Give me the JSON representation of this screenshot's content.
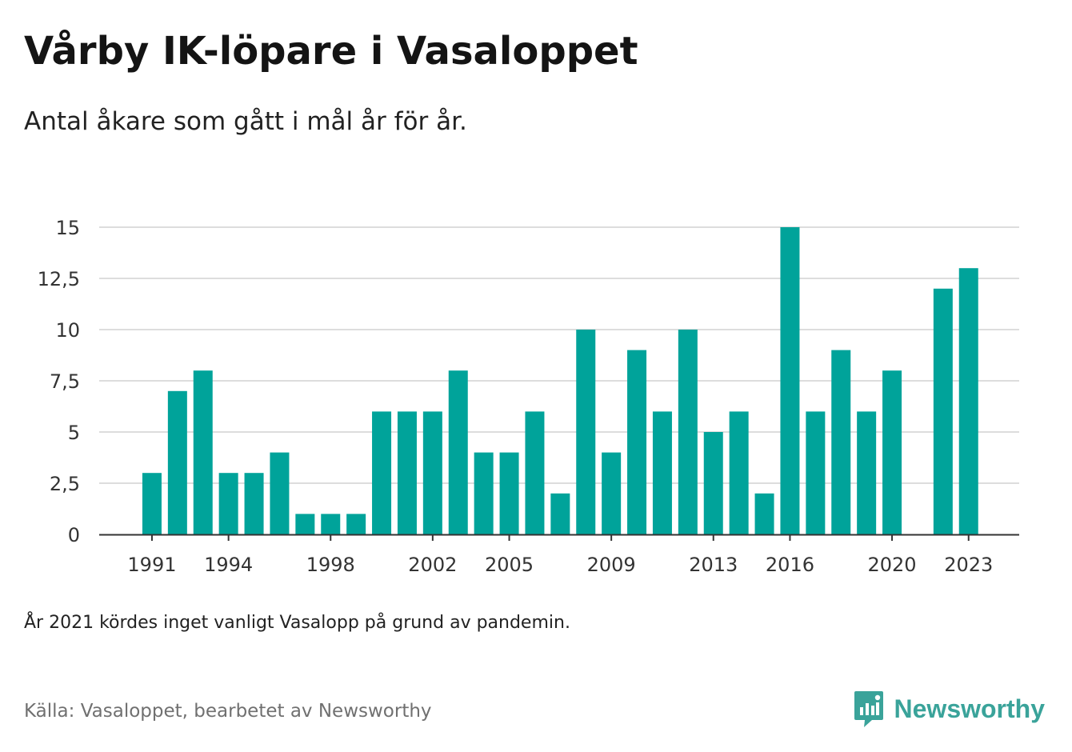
{
  "title": "Vårby IK-löpare i Vasaloppet",
  "subtitle": "Antal åkare som gått i mål år för år.",
  "note": "År 2021 kördes inget vanligt Vasalopp på grund av pandemin.",
  "source": "Källa: Vasaloppet, bearbetet av Newsworthy",
  "brand": {
    "name": "Newsworthy",
    "icon": "newsworthy-logo-icon"
  },
  "colors": {
    "bar": "#00a39a",
    "grid": "#dddddd",
    "axis": "#333333"
  },
  "chart_data": {
    "type": "bar",
    "categories": [
      1991,
      1992,
      1993,
      1994,
      1995,
      1996,
      1997,
      1998,
      1999,
      2000,
      2001,
      2002,
      2003,
      2004,
      2005,
      2006,
      2007,
      2008,
      2009,
      2010,
      2011,
      2012,
      2013,
      2014,
      2015,
      2016,
      2017,
      2018,
      2019,
      2020,
      2021,
      2022,
      2023
    ],
    "values": [
      3,
      7,
      8,
      3,
      3,
      4,
      1,
      1,
      1,
      6,
      6,
      6,
      8,
      4,
      4,
      6,
      2,
      10,
      4,
      9,
      6,
      10,
      5,
      6,
      2,
      15,
      6,
      9,
      6,
      8,
      null,
      12,
      13
    ],
    "x_tick_labels": [
      "1991",
      "1994",
      "1998",
      "2002",
      "2005",
      "2009",
      "2013",
      "2016",
      "2020",
      "2023"
    ],
    "y_tick_labels": [
      "0",
      "2,5",
      "5",
      "7,5",
      "10",
      "12,5",
      "15"
    ],
    "y_ticks": [
      0,
      2.5,
      5,
      7.5,
      10,
      12.5,
      15
    ],
    "ylim": [
      0,
      15
    ],
    "xlabel": "",
    "ylabel": "",
    "grid": true,
    "legend": "none"
  }
}
